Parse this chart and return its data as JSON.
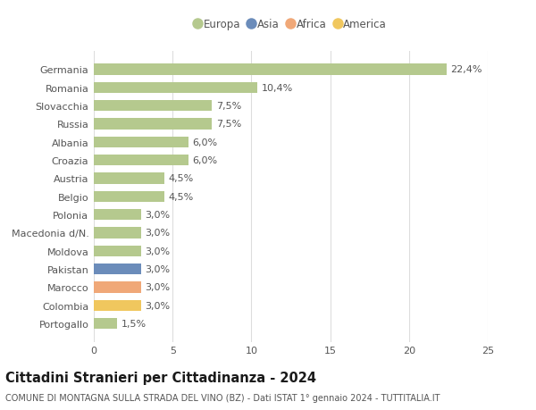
{
  "categories": [
    "Portogallo",
    "Colombia",
    "Marocco",
    "Pakistan",
    "Moldova",
    "Macedonia d/N.",
    "Polonia",
    "Belgio",
    "Austria",
    "Croazia",
    "Albania",
    "Russia",
    "Slovacchia",
    "Romania",
    "Germania"
  ],
  "values": [
    1.5,
    3.0,
    3.0,
    3.0,
    3.0,
    3.0,
    3.0,
    4.5,
    4.5,
    6.0,
    6.0,
    7.5,
    7.5,
    10.4,
    22.4
  ],
  "labels": [
    "1,5%",
    "3,0%",
    "3,0%",
    "3,0%",
    "3,0%",
    "3,0%",
    "3,0%",
    "4,5%",
    "4,5%",
    "6,0%",
    "6,0%",
    "7,5%",
    "7,5%",
    "10,4%",
    "22,4%"
  ],
  "colors": [
    "#b5c98e",
    "#f0c75e",
    "#f0a878",
    "#6b8cba",
    "#b5c98e",
    "#b5c98e",
    "#b5c98e",
    "#b5c98e",
    "#b5c98e",
    "#b5c98e",
    "#b5c98e",
    "#b5c98e",
    "#b5c98e",
    "#b5c98e",
    "#b5c98e"
  ],
  "legend_labels": [
    "Europa",
    "Asia",
    "Africa",
    "America"
  ],
  "legend_colors": [
    "#b5c98e",
    "#6b8cba",
    "#f0a878",
    "#f0c75e"
  ],
  "xlim": [
    0,
    25
  ],
  "xticks": [
    0,
    5,
    10,
    15,
    20,
    25
  ],
  "title": "Cittadini Stranieri per Cittadinanza - 2024",
  "subtitle": "COMUNE DI MONTAGNA SULLA STRADA DEL VINO (BZ) - Dati ISTAT 1° gennaio 2024 - TUTTITALIA.IT",
  "bar_height": 0.6,
  "bg_color": "#ffffff",
  "grid_color": "#dddddd",
  "label_color": "#555555",
  "title_fontsize": 10.5,
  "subtitle_fontsize": 7.0,
  "tick_fontsize": 8.0,
  "label_fontsize": 8.0,
  "legend_fontsize": 8.5
}
